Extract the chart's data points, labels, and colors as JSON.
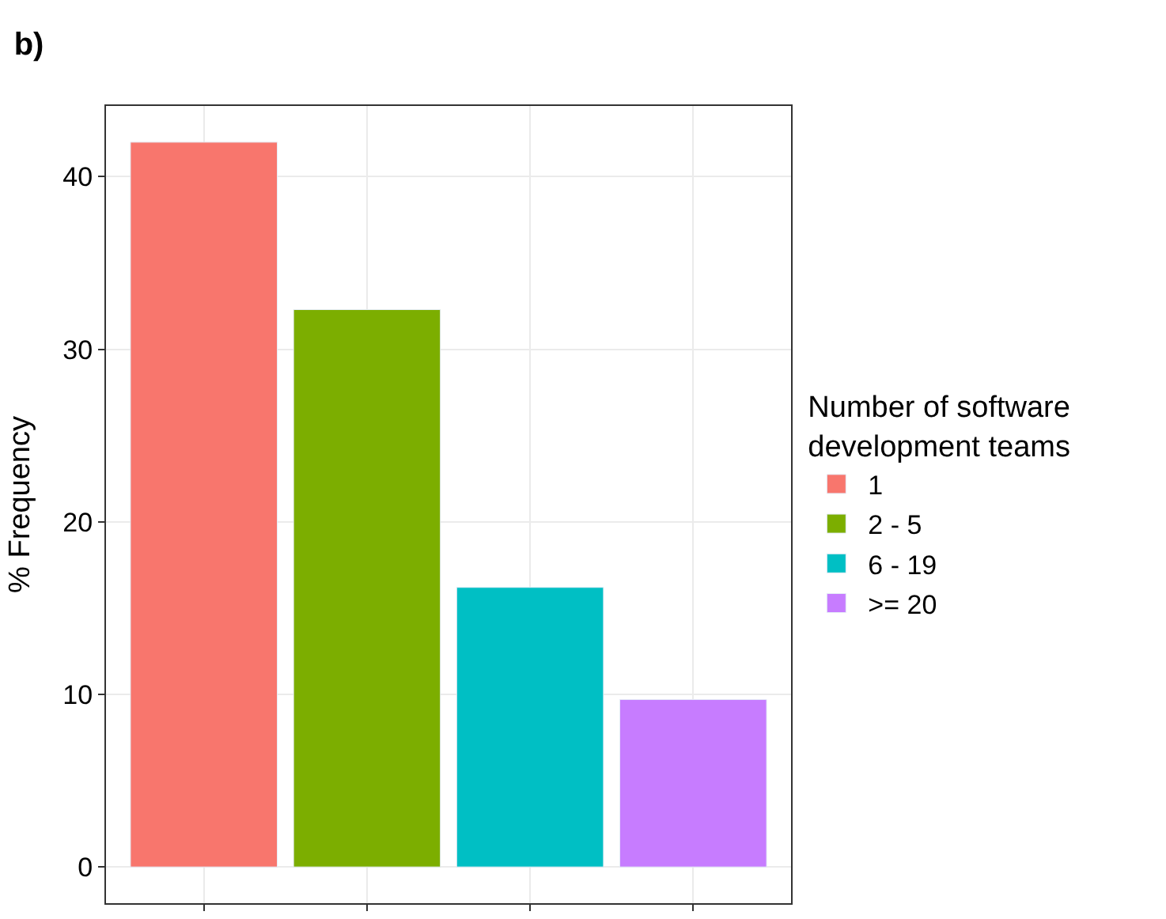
{
  "chart_data": {
    "type": "bar",
    "title": "b)",
    "ylabel": "% Frequency",
    "legend_title": "Number of software\ndevelopment teams",
    "categories": [
      null,
      null,
      null,
      null
    ],
    "series": [
      {
        "name": "1",
        "color": "#f8766d",
        "values": [
          42,
          null,
          null,
          null
        ]
      },
      {
        "name": "2 - 5",
        "color": "#7cae00",
        "values": [
          null,
          32.3,
          null,
          null
        ]
      },
      {
        "name": "6 - 19",
        "color": "#00bfc4",
        "values": [
          null,
          null,
          16.2,
          null
        ]
      },
      {
        "name": ">= 20",
        "color": "#c77cff",
        "values": [
          null,
          null,
          null,
          9.7
        ]
      }
    ],
    "ylim": [
      -2.1,
      44.1
    ],
    "yticks": [
      0,
      10,
      20,
      30,
      40
    ],
    "grid": true,
    "legend": "right",
    "tick_labels": "y"
  }
}
